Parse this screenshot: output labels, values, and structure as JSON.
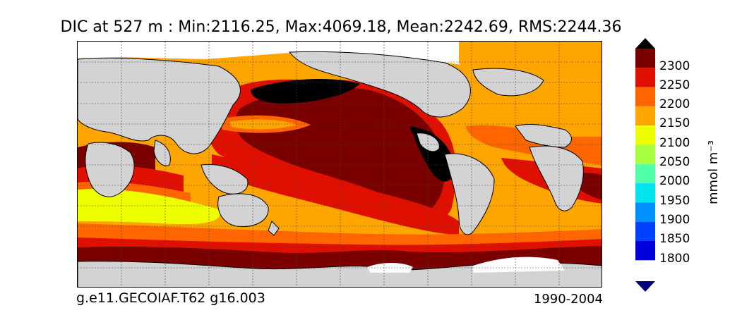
{
  "title": "DIC at 527 m : Min:2116.25, Max:4069.18, Mean:2242.69, RMS:2244.36",
  "footer": {
    "case": "g.e11.GECOIAF.T62 g16.003",
    "period": "1990-2004"
  },
  "colorbar": {
    "label": "mmol m⁻³",
    "levels": [
      "2300",
      "2250",
      "2200",
      "2150",
      "2100",
      "2050",
      "2000",
      "1950",
      "1900",
      "1850",
      "1800"
    ],
    "colors": {
      "over": "#000000",
      "c2300": "#7a0000",
      "c2250": "#e01000",
      "c2200": "#ff6600",
      "c2150": "#ffa500",
      "c2100": "#eeff00",
      "c2050": "#a8ff40",
      "c2000": "#50ffa8",
      "c1950": "#00e5ee",
      "c1900": "#0090ff",
      "c1850": "#0040ff",
      "c1800": "#0000dd",
      "under": "#00007a"
    }
  },
  "map": {
    "land_color": "#d3d3d3",
    "ice_color": "#ffffff",
    "gridlines": "dotted"
  }
}
